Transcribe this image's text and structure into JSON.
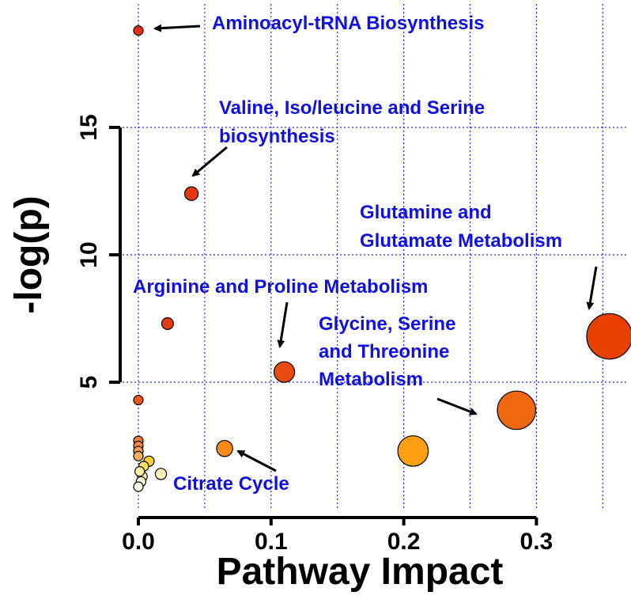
{
  "chart_data": {
    "type": "scatter",
    "title": "",
    "xlabel": "Pathway Impact",
    "ylabel": "-log(p)",
    "xlim": [
      0,
      0.36
    ],
    "ylim": [
      0,
      20
    ],
    "x_ticks": [
      "0.0",
      "0.1",
      "0.2",
      "0.3"
    ],
    "x_tick_values": [
      0,
      0.1,
      0.2,
      0.3
    ],
    "y_ticks": [
      "5",
      "10",
      "15"
    ],
    "y_tick_values": [
      5,
      10,
      15
    ],
    "grid": true,
    "grid_color": "#2b2bd6",
    "annotation_color": "#1010e0",
    "bubble_size_encodes": "Pathway Impact",
    "bubble_color_encodes": "-log(p)",
    "points": [
      {
        "x": 0.0,
        "y": 18.8,
        "color": "#e03010"
      },
      {
        "x": 0.04,
        "y": 12.4,
        "color": "#e43810"
      },
      {
        "x": 0.022,
        "y": 7.3,
        "color": "#e43c10"
      },
      {
        "x": 0.11,
        "y": 5.4,
        "color": "#e84a10"
      },
      {
        "x": 0.355,
        "y": 6.8,
        "color": "#e84000"
      },
      {
        "x": 0.285,
        "y": 3.9,
        "color": "#ee6810"
      },
      {
        "x": 0.207,
        "y": 2.3,
        "color": "#ffa012"
      },
      {
        "x": 0.065,
        "y": 2.4,
        "color": "#f88a18"
      },
      {
        "x": 0.0,
        "y": 4.3,
        "color": "#ee5a18"
      },
      {
        "x": 0.0,
        "y": 2.7,
        "color": "#f28030"
      },
      {
        "x": 0.0,
        "y": 2.5,
        "color": "#f48a40"
      },
      {
        "x": 0.0,
        "y": 2.3,
        "color": "#f6a050"
      },
      {
        "x": 0.0,
        "y": 2.1,
        "color": "#f8b060"
      },
      {
        "x": 0.008,
        "y": 1.9,
        "color": "#fdd030"
      },
      {
        "x": 0.004,
        "y": 1.7,
        "color": "#fee060"
      },
      {
        "x": 0.001,
        "y": 1.5,
        "color": "#fff0a0"
      },
      {
        "x": 0.017,
        "y": 1.4,
        "color": "#ffeeb8"
      },
      {
        "x": 0.003,
        "y": 1.3,
        "color": "#fff4c0"
      },
      {
        "x": 0.002,
        "y": 1.1,
        "color": "#fff8d0"
      },
      {
        "x": 0.0,
        "y": 0.9,
        "color": "#fffbe8"
      }
    ],
    "annotations": [
      {
        "lines": [
          "Aminoacyl-tRNA Biosynthesis"
        ]
      },
      {
        "lines": [
          "Valine, Iso/leucine and Serine",
          "biosynthesis"
        ]
      },
      {
        "lines": [
          "Glutamine and",
          "Glutamate Metabolism"
        ]
      },
      {
        "lines": [
          "Arginine and Proline Metabolism"
        ]
      },
      {
        "lines": [
          "Glycine, Serine",
          "and Threonine",
          "Metabolism"
        ]
      },
      {
        "lines": [
          "Citrate Cycle"
        ]
      }
    ]
  }
}
